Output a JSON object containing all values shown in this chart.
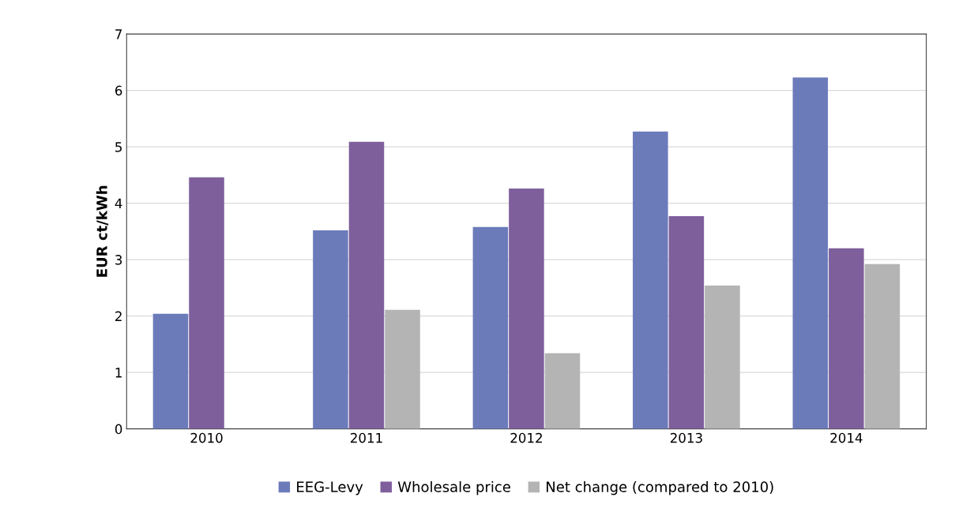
{
  "chart_data": {
    "type": "bar",
    "ylabel": "EUR ct/kWh",
    "categories": [
      "2010",
      "2011",
      "2012",
      "2013",
      "2014"
    ],
    "series": [
      {
        "name": "EEG-Levy",
        "color": "#6b7bba",
        "values": [
          2.04,
          3.52,
          3.58,
          5.27,
          6.23
        ]
      },
      {
        "name": "Wholesale price",
        "color": "#7e5f9c",
        "values": [
          4.46,
          5.09,
          4.26,
          3.77,
          3.2
        ]
      },
      {
        "name": "Net change (compared to 2010)",
        "color": "#b4b4b4",
        "values": [
          null,
          2.11,
          1.34,
          2.54,
          2.92
        ]
      }
    ],
    "ylim": [
      0,
      7
    ],
    "yticks": [
      0,
      1,
      2,
      3,
      4,
      5,
      6,
      7
    ],
    "grid": "y",
    "legend": "bottom"
  }
}
